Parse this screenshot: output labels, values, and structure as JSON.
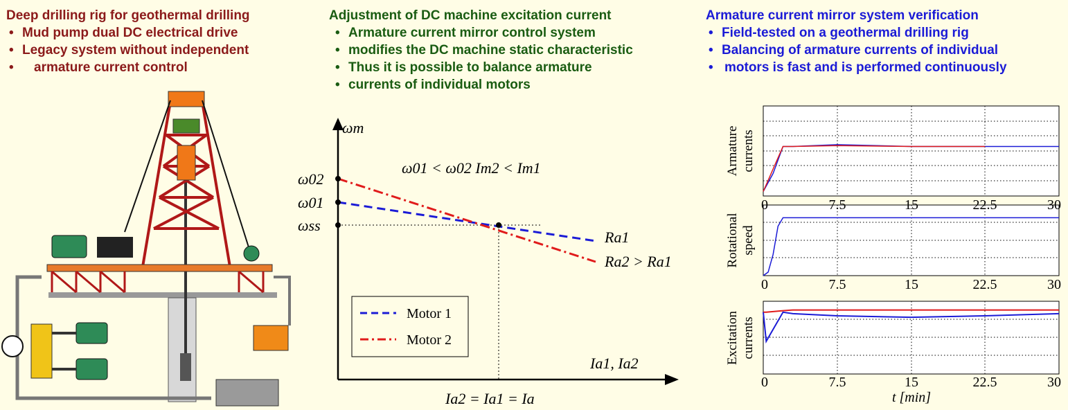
{
  "left": {
    "title": "Deep drilling rig for geothermal drilling",
    "bullets": [
      "Mud pump dual DC electrical drive",
      "Legacy system without independent",
      "armature current control"
    ],
    "color": "#8b1a1a"
  },
  "middle": {
    "title": "Adjustment of DC machine excitation current",
    "bullets": [
      "Armature current mirror control system",
      "modifies the DC machine static characteristic",
      "Thus it is possible to balance armature",
      "currents of individual motors"
    ],
    "color": "#1a5c12"
  },
  "right": {
    "title": "Armature current mirror system verification",
    "bullets": [
      "Field-tested on a geothermal drilling rig",
      "Balancing of armature currents of individual",
      "motors is fast and is performed continuously"
    ],
    "color": "#1b1bd6"
  },
  "characteristic": {
    "y_axis_label": "ωm",
    "x_axis_label": "Ia1, Ia2",
    "y_ticks": [
      "ω02",
      "ω01",
      "ωss"
    ],
    "x_marker_label": "Ia2 = Ia1 = Ia",
    "relation": "ω01 < ω02  Im2 < Im1",
    "line_labels": [
      "Ra1",
      "Ra2 > Ra1"
    ],
    "legend": [
      "Motor 1",
      "Motor 2"
    ]
  },
  "plots": {
    "xlabel": "t [min]",
    "x_ticks": [
      "0",
      "7.5",
      "15",
      "22.5",
      "30"
    ],
    "ylabels": [
      [
        "Armature",
        "currents"
      ],
      [
        "Rotational",
        "speed"
      ],
      [
        "Excitation",
        "currents"
      ]
    ]
  },
  "chart_data": [
    {
      "type": "line",
      "ylabel": "Armature currents",
      "x": [
        0,
        1,
        2,
        3,
        7.5,
        15,
        22.5,
        30
      ],
      "xlim": [
        0,
        30
      ],
      "ylim": [
        0,
        1
      ],
      "grid": true,
      "series": [
        {
          "color": "#1b1bd6",
          "values": [
            0.05,
            0.25,
            0.55,
            0.55,
            0.57,
            0.55,
            0.55,
            0.55
          ]
        },
        {
          "color": "#e01b1b",
          "values": [
            0.05,
            0.3,
            0.55,
            0.55,
            0.56,
            0.55,
            0.55,
            null
          ]
        }
      ]
    },
    {
      "type": "line",
      "ylabel": "Rotational speed",
      "x": [
        0,
        0.5,
        1,
        1.5,
        2,
        7.5,
        15,
        22.5,
        30
      ],
      "xlim": [
        0,
        30
      ],
      "ylim": [
        0,
        1
      ],
      "grid": true,
      "series": [
        {
          "color": "#1b1bd6",
          "values": [
            0,
            0.05,
            0.3,
            0.7,
            0.82,
            0.82,
            0.82,
            0.82,
            0.82
          ]
        }
      ]
    },
    {
      "type": "line",
      "ylabel": "Excitation currents",
      "x": [
        0,
        0.3,
        2,
        3,
        7.5,
        15,
        22.5,
        30
      ],
      "xlim": [
        0,
        30
      ],
      "ylim": [
        0,
        1
      ],
      "grid": true,
      "series": [
        {
          "color": "#e01b1b",
          "values": [
            0.85,
            0.85,
            0.87,
            0.88,
            0.88,
            0.88,
            0.88,
            0.88
          ]
        },
        {
          "color": "#1b1bd6",
          "values": [
            0.85,
            0.45,
            0.85,
            0.83,
            0.8,
            0.78,
            0.8,
            0.83
          ]
        }
      ]
    }
  ]
}
